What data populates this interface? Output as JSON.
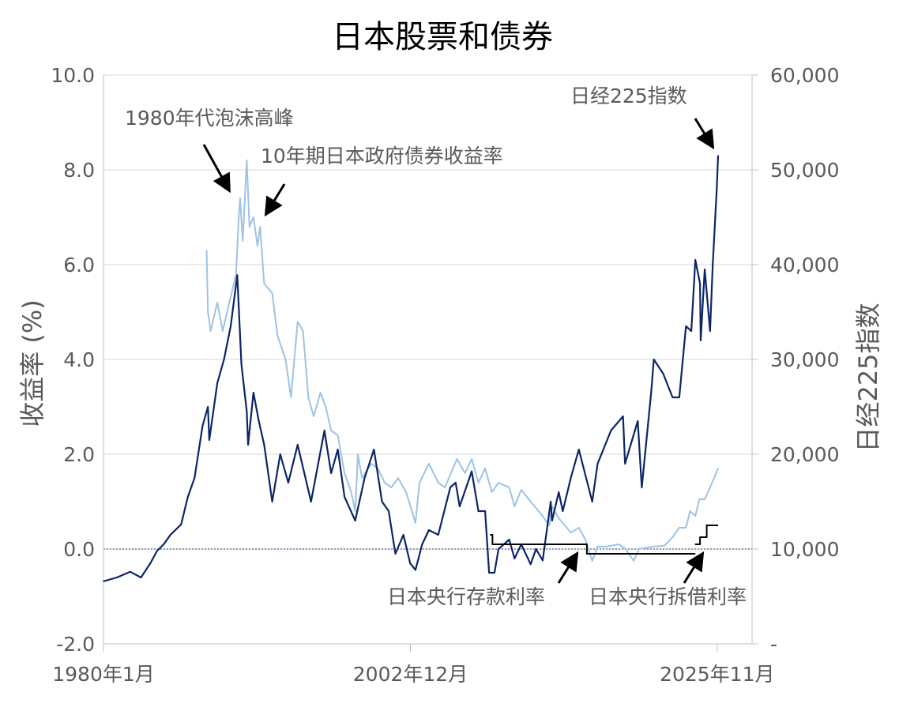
{
  "chart_data": {
    "type": "line",
    "title": "日本股票和债券",
    "ylabel": "收益率 (%)",
    "y2label": "日经225指数",
    "ylim": [
      -2.0,
      10.0
    ],
    "y2lim": [
      0,
      60000
    ],
    "yticks": [
      "-2.0",
      "0.0",
      "2.0",
      "4.0",
      "6.0",
      "8.0",
      "10.0"
    ],
    "y2ticks": [
      "-",
      "10,000",
      "20,000",
      "30,000",
      "40,000",
      "50,000",
      "60,000"
    ],
    "xticks": [
      {
        "label": "1980年1月",
        "x": 1980.0
      },
      {
        "label": "2002年12月",
        "x": 2002.92
      },
      {
        "label": "2025年11月",
        "x": 2025.83
      }
    ],
    "grid": true,
    "colors": {
      "nikkei": "#0b2566",
      "jgb": "#9dc3e6",
      "policy": "#000000",
      "zero": "#1f3a7a"
    },
    "series": [
      {
        "name": "日经225指数",
        "axis": "right",
        "x": [
          1980.0,
          1981.0,
          1982.0,
          1982.8,
          1983.5,
          1984.0,
          1984.5,
          1985.0,
          1985.8,
          1986.3,
          1986.8,
          1987.4,
          1987.8,
          1987.9,
          1988.5,
          1989.0,
          1989.5,
          1989.99,
          1990.3,
          1990.7,
          1990.8,
          1991.2,
          1991.6,
          1992.0,
          1992.6,
          1993.2,
          1993.8,
          1994.5,
          1995.5,
          1996.5,
          1997.0,
          1997.5,
          1998.0,
          1998.8,
          1999.5,
          2000.2,
          2000.8,
          2001.3,
          2001.8,
          2002.4,
          2002.9,
          2003.3,
          2003.8,
          2004.3,
          2005.0,
          2005.9,
          2006.3,
          2006.6,
          2007.5,
          2008.0,
          2008.5,
          2008.8,
          2009.2,
          2009.5,
          2010.3,
          2010.7,
          2011.2,
          2011.9,
          2012.3,
          2012.8,
          2013.4,
          2013.5,
          2014.0,
          2014.3,
          2014.9,
          2015.5,
          2016.5,
          2016.9,
          2017.9,
          2018.8,
          2018.95,
          2019.9,
          2020.2,
          2020.9,
          2021.1,
          2021.8,
          2022.5,
          2023.0,
          2023.5,
          2023.9,
          2024.2,
          2024.55,
          2024.6,
          2024.9,
          2025.3,
          2025.5,
          2025.8,
          2025.9
        ],
        "values": [
          6600,
          7000,
          7600,
          7000,
          8500,
          9800,
          10500,
          11500,
          12600,
          15500,
          17500,
          23000,
          25000,
          21500,
          27500,
          30000,
          33500,
          38900,
          29500,
          24500,
          21000,
          26500,
          23500,
          21000,
          15000,
          20000,
          17000,
          21000,
          15000,
          22500,
          18000,
          20500,
          15500,
          13000,
          17500,
          20500,
          15000,
          14000,
          9500,
          11500,
          8500,
          7800,
          10500,
          12000,
          11500,
          16500,
          17000,
          14500,
          18200,
          14000,
          14000,
          7500,
          7500,
          10000,
          11000,
          9000,
          10500,
          8400,
          10000,
          8800,
          15000,
          13000,
          16000,
          14000,
          17500,
          20500,
          15000,
          19000,
          22500,
          24000,
          19000,
          23500,
          16500,
          26500,
          30000,
          28500,
          26000,
          26000,
          33500,
          33000,
          40500,
          38000,
          32000,
          39500,
          33000,
          40000,
          48000,
          51500
        ]
      },
      {
        "name": "10年期日本政府债券收益率",
        "axis": "left",
        "x": [
          1987.7,
          1987.8,
          1988.0,
          1988.5,
          1988.9,
          1989.4,
          1989.9,
          1990.1,
          1990.2,
          1990.4,
          1990.7,
          1990.9,
          1991.2,
          1991.5,
          1991.7,
          1992.0,
          1992.6,
          1993.0,
          1993.6,
          1994.0,
          1994.5,
          1994.9,
          1995.3,
          1995.7,
          1996.2,
          1996.6,
          1997.0,
          1997.5,
          1998.0,
          1998.5,
          1998.8,
          1999.0,
          1999.3,
          2000.0,
          2000.5,
          2001.0,
          2001.5,
          2002.0,
          2002.6,
          2003.3,
          2003.6,
          2004.3,
          2005.0,
          2005.5,
          2006.4,
          2007.0,
          2007.5,
          2008.0,
          2008.5,
          2009.0,
          2009.5,
          2010.3,
          2010.7,
          2011.2,
          2011.9,
          2012.5,
          2013.3,
          2013.5,
          2014.0,
          2014.9,
          2015.5,
          2015.99,
          2016.5,
          2016.9,
          2017.5,
          2018.5,
          2019.0,
          2019.6,
          2020.0,
          2021.0,
          2021.9,
          2022.5,
          2022.99,
          2023.5,
          2023.8,
          2024.2,
          2024.5,
          2024.9,
          2025.3,
          2025.6,
          2025.9
        ],
        "values": [
          6.3,
          5.0,
          4.6,
          5.2,
          4.6,
          5.2,
          5.8,
          7.0,
          7.4,
          6.5,
          8.2,
          6.8,
          7.0,
          6.4,
          6.8,
          5.6,
          5.4,
          4.5,
          4.0,
          3.2,
          4.8,
          4.6,
          3.2,
          2.8,
          3.3,
          3.0,
          2.5,
          2.4,
          1.6,
          1.2,
          0.8,
          2.0,
          1.5,
          1.8,
          1.7,
          1.4,
          1.3,
          1.5,
          1.2,
          0.55,
          1.4,
          1.8,
          1.4,
          1.3,
          1.9,
          1.6,
          1.9,
          1.4,
          1.7,
          1.2,
          1.4,
          1.3,
          0.9,
          1.25,
          1.0,
          0.8,
          0.5,
          0.9,
          0.65,
          0.35,
          0.45,
          0.2,
          -0.25,
          0.05,
          0.05,
          0.1,
          0.0,
          -0.25,
          0.0,
          0.05,
          0.07,
          0.25,
          0.45,
          0.45,
          0.8,
          0.7,
          1.05,
          1.05,
          1.3,
          1.5,
          1.7
        ]
      },
      {
        "name": "日本央行存款利率",
        "axis": "left",
        "step": true,
        "x": [
          2008.9,
          2009.05,
          2016.1
        ],
        "values": [
          0.3,
          0.1,
          -0.1
        ],
        "end": 2024.2
      },
      {
        "name": "日本央行拆借利率",
        "axis": "left",
        "step": true,
        "x": [
          2024.2,
          2024.55,
          2025.05
        ],
        "values": [
          0.1,
          0.25,
          0.5
        ],
        "end": 2025.9
      }
    ],
    "annotations": [
      "1980年代泡沫高峰",
      "10年期日本政府债券收益率",
      "日经225指数",
      "日本央行存款利率",
      "日本央行拆借利率"
    ]
  }
}
